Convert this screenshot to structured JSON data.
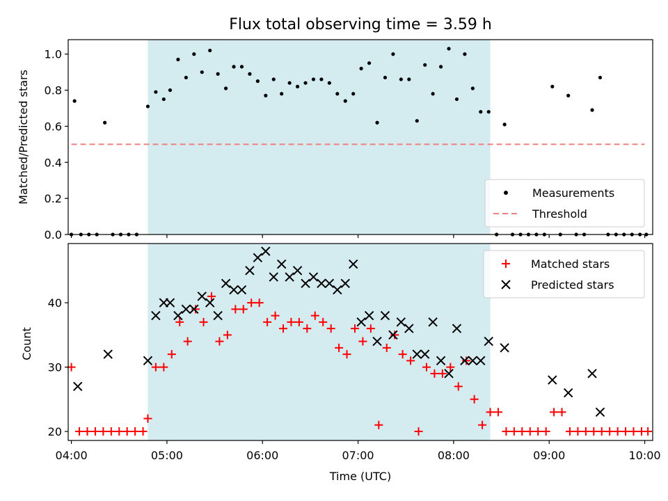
{
  "chart_data": [
    {
      "type": "scatter",
      "title": "Flux total observing time = 3.59 h",
      "xlabel": "",
      "ylabel": "Matched/Predicted stars",
      "xlim": [
        "03:58",
        "10:05"
      ],
      "ylim": [
        0.0,
        1.08
      ],
      "yticks": [
        "0.0",
        "0.2",
        "0.4",
        "0.6",
        "0.8",
        "1.0"
      ],
      "highlight_span": [
        "04:48",
        "08:23"
      ],
      "highlight_color": "#d4ebf0",
      "legend": {
        "placement": "lower-right",
        "entries": [
          {
            "label": "Measurements",
            "marker": "dot",
            "color": "#000000"
          },
          {
            "label": "Threshold",
            "marker": "dashed-line",
            "color": "#f08080"
          }
        ]
      },
      "threshold": {
        "value": 0.5,
        "x": [
          "04:00",
          "10:00"
        ],
        "color": "#f08080"
      },
      "series": [
        {
          "name": "Measurements",
          "color": "#000000",
          "points": [
            [
              "04:00",
              0.0
            ],
            [
              "04:02",
              0.74
            ],
            [
              "04:06",
              0.0
            ],
            [
              "04:11",
              0.0
            ],
            [
              "04:16",
              0.0
            ],
            [
              "04:21",
              0.62
            ],
            [
              "04:26",
              0.0
            ],
            [
              "04:31",
              0.0
            ],
            [
              "04:36",
              0.0
            ],
            [
              "04:41",
              0.0
            ],
            [
              "04:48",
              0.71
            ],
            [
              "04:53",
              0.79
            ],
            [
              "04:58",
              0.75
            ],
            [
              "05:02",
              0.8
            ],
            [
              "05:07",
              0.97
            ],
            [
              "05:12",
              0.87
            ],
            [
              "05:17",
              1.0
            ],
            [
              "05:22",
              0.9
            ],
            [
              "05:27",
              1.02
            ],
            [
              "05:32",
              0.89
            ],
            [
              "05:37",
              0.81
            ],
            [
              "05:42",
              0.93
            ],
            [
              "05:47",
              0.93
            ],
            [
              "05:52",
              0.89
            ],
            [
              "05:57",
              0.85
            ],
            [
              "06:02",
              0.77
            ],
            [
              "06:07",
              0.86
            ],
            [
              "06:12",
              0.78
            ],
            [
              "06:17",
              0.84
            ],
            [
              "06:22",
              0.82
            ],
            [
              "06:27",
              0.84
            ],
            [
              "06:32",
              0.86
            ],
            [
              "06:37",
              0.86
            ],
            [
              "06:42",
              0.84
            ],
            [
              "06:47",
              0.78
            ],
            [
              "06:52",
              0.74
            ],
            [
              "06:57",
              0.78
            ],
            [
              "07:02",
              0.92
            ],
            [
              "07:07",
              0.95
            ],
            [
              "07:12",
              0.62
            ],
            [
              "07:17",
              0.87
            ],
            [
              "07:22",
              1.0
            ],
            [
              "07:27",
              0.86
            ],
            [
              "07:32",
              0.86
            ],
            [
              "07:37",
              0.63
            ],
            [
              "07:42",
              0.94
            ],
            [
              "07:47",
              0.78
            ],
            [
              "07:52",
              0.93
            ],
            [
              "07:57",
              1.03
            ],
            [
              "08:02",
              0.75
            ],
            [
              "08:07",
              1.0
            ],
            [
              "08:12",
              0.81
            ],
            [
              "08:17",
              0.68
            ],
            [
              "08:22",
              0.68
            ],
            [
              "08:27",
              0.0
            ],
            [
              "08:32",
              0.61
            ],
            [
              "08:37",
              0.0
            ],
            [
              "08:42",
              0.0
            ],
            [
              "08:47",
              0.0
            ],
            [
              "08:52",
              0.0
            ],
            [
              "08:57",
              0.0
            ],
            [
              "09:02",
              0.82
            ],
            [
              "09:07",
              0.0
            ],
            [
              "09:12",
              0.77
            ],
            [
              "09:17",
              0.0
            ],
            [
              "09:22",
              0.0
            ],
            [
              "09:27",
              0.69
            ],
            [
              "09:32",
              0.87
            ],
            [
              "09:37",
              0.0
            ],
            [
              "09:42",
              0.0
            ],
            [
              "09:47",
              0.0
            ],
            [
              "09:52",
              0.0
            ],
            [
              "09:57",
              0.0
            ],
            [
              "10:01",
              0.0
            ]
          ]
        }
      ]
    },
    {
      "type": "scatter",
      "title": "",
      "xlabel": "Time (UTC)",
      "ylabel": "Count",
      "xlim": [
        "03:58",
        "10:05"
      ],
      "ylim": [
        18.6,
        49.2
      ],
      "yticks": [
        "20",
        "30",
        "40"
      ],
      "xticks": [
        "04:00",
        "05:00",
        "06:00",
        "07:00",
        "08:00",
        "09:00",
        "10:00"
      ],
      "highlight_span": [
        "04:48",
        "08:23"
      ],
      "highlight_color": "#d4ebf0",
      "legend": {
        "placement": "upper-right",
        "entries": [
          {
            "label": "Matched stars",
            "marker": "plus",
            "color": "#ff0000"
          },
          {
            "label": "Predicted stars",
            "marker": "x",
            "color": "#000000"
          }
        ]
      },
      "series": [
        {
          "name": "Matched stars",
          "marker": "plus",
          "color": "#ff0000",
          "points": [
            [
              "04:00",
              30
            ],
            [
              "04:05",
              20
            ],
            [
              "04:10",
              20
            ],
            [
              "04:15",
              20
            ],
            [
              "04:20",
              20
            ],
            [
              "04:25",
              20
            ],
            [
              "04:30",
              20
            ],
            [
              "04:35",
              20
            ],
            [
              "04:40",
              20
            ],
            [
              "04:45",
              20
            ],
            [
              "04:48",
              22
            ],
            [
              "04:53",
              30
            ],
            [
              "04:58",
              30
            ],
            [
              "05:03",
              32
            ],
            [
              "05:08",
              37
            ],
            [
              "05:13",
              34
            ],
            [
              "05:18",
              39
            ],
            [
              "05:23",
              37
            ],
            [
              "05:28",
              41
            ],
            [
              "05:33",
              34
            ],
            [
              "05:38",
              35
            ],
            [
              "05:43",
              39
            ],
            [
              "05:48",
              39
            ],
            [
              "05:53",
              40
            ],
            [
              "05:58",
              40
            ],
            [
              "06:03",
              37
            ],
            [
              "06:08",
              38
            ],
            [
              "06:13",
              36
            ],
            [
              "06:18",
              37
            ],
            [
              "06:23",
              37
            ],
            [
              "06:28",
              36
            ],
            [
              "06:33",
              38
            ],
            [
              "06:38",
              37
            ],
            [
              "06:43",
              36
            ],
            [
              "06:48",
              33
            ],
            [
              "06:53",
              32
            ],
            [
              "06:58",
              36
            ],
            [
              "07:03",
              34
            ],
            [
              "07:08",
              36
            ],
            [
              "07:13",
              21
            ],
            [
              "07:18",
              33
            ],
            [
              "07:23",
              35
            ],
            [
              "07:28",
              32
            ],
            [
              "07:33",
              31
            ],
            [
              "07:38",
              20
            ],
            [
              "07:43",
              30
            ],
            [
              "07:48",
              29
            ],
            [
              "07:53",
              29
            ],
            [
              "07:58",
              30
            ],
            [
              "08:03",
              27
            ],
            [
              "08:08",
              31
            ],
            [
              "08:13",
              25
            ],
            [
              "08:18",
              21
            ],
            [
              "08:23",
              23
            ],
            [
              "08:28",
              23
            ],
            [
              "08:33",
              20
            ],
            [
              "08:38",
              20
            ],
            [
              "08:43",
              20
            ],
            [
              "08:48",
              20
            ],
            [
              "08:53",
              20
            ],
            [
              "08:58",
              20
            ],
            [
              "09:03",
              23
            ],
            [
              "09:08",
              23
            ],
            [
              "09:13",
              20
            ],
            [
              "09:18",
              20
            ],
            [
              "09:23",
              20
            ],
            [
              "09:28",
              20
            ],
            [
              "09:33",
              20
            ],
            [
              "09:38",
              20
            ],
            [
              "09:43",
              20
            ],
            [
              "09:48",
              20
            ],
            [
              "09:53",
              20
            ],
            [
              "09:58",
              20
            ],
            [
              "10:02",
              20
            ]
          ]
        },
        {
          "name": "Predicted stars",
          "marker": "x",
          "color": "#000000",
          "points": [
            [
              "04:04",
              27
            ],
            [
              "04:23",
              32
            ],
            [
              "04:48",
              31
            ],
            [
              "04:53",
              38
            ],
            [
              "04:58",
              40
            ],
            [
              "05:02",
              40
            ],
            [
              "05:07",
              38
            ],
            [
              "05:12",
              39
            ],
            [
              "05:17",
              39
            ],
            [
              "05:22",
              41
            ],
            [
              "05:27",
              40
            ],
            [
              "05:32",
              38
            ],
            [
              "05:37",
              43
            ],
            [
              "05:42",
              42
            ],
            [
              "05:47",
              42
            ],
            [
              "05:52",
              45
            ],
            [
              "05:57",
              47
            ],
            [
              "06:02",
              48
            ],
            [
              "06:07",
              44
            ],
            [
              "06:12",
              46
            ],
            [
              "06:17",
              44
            ],
            [
              "06:22",
              45
            ],
            [
              "06:27",
              43
            ],
            [
              "06:32",
              44
            ],
            [
              "06:37",
              43
            ],
            [
              "06:42",
              43
            ],
            [
              "06:47",
              42
            ],
            [
              "06:52",
              43
            ],
            [
              "06:57",
              46
            ],
            [
              "07:02",
              37
            ],
            [
              "07:07",
              38
            ],
            [
              "07:12",
              34
            ],
            [
              "07:17",
              38
            ],
            [
              "07:22",
              35
            ],
            [
              "07:27",
              37
            ],
            [
              "07:32",
              36
            ],
            [
              "07:37",
              32
            ],
            [
              "07:42",
              32
            ],
            [
              "07:47",
              37
            ],
            [
              "07:52",
              31
            ],
            [
              "07:57",
              29
            ],
            [
              "08:02",
              36
            ],
            [
              "08:07",
              31
            ],
            [
              "08:12",
              31
            ],
            [
              "08:17",
              31
            ],
            [
              "08:22",
              34
            ],
            [
              "08:32",
              33
            ],
            [
              "09:02",
              28
            ],
            [
              "09:12",
              26
            ],
            [
              "09:27",
              29
            ],
            [
              "09:32",
              23
            ]
          ]
        }
      ]
    }
  ]
}
